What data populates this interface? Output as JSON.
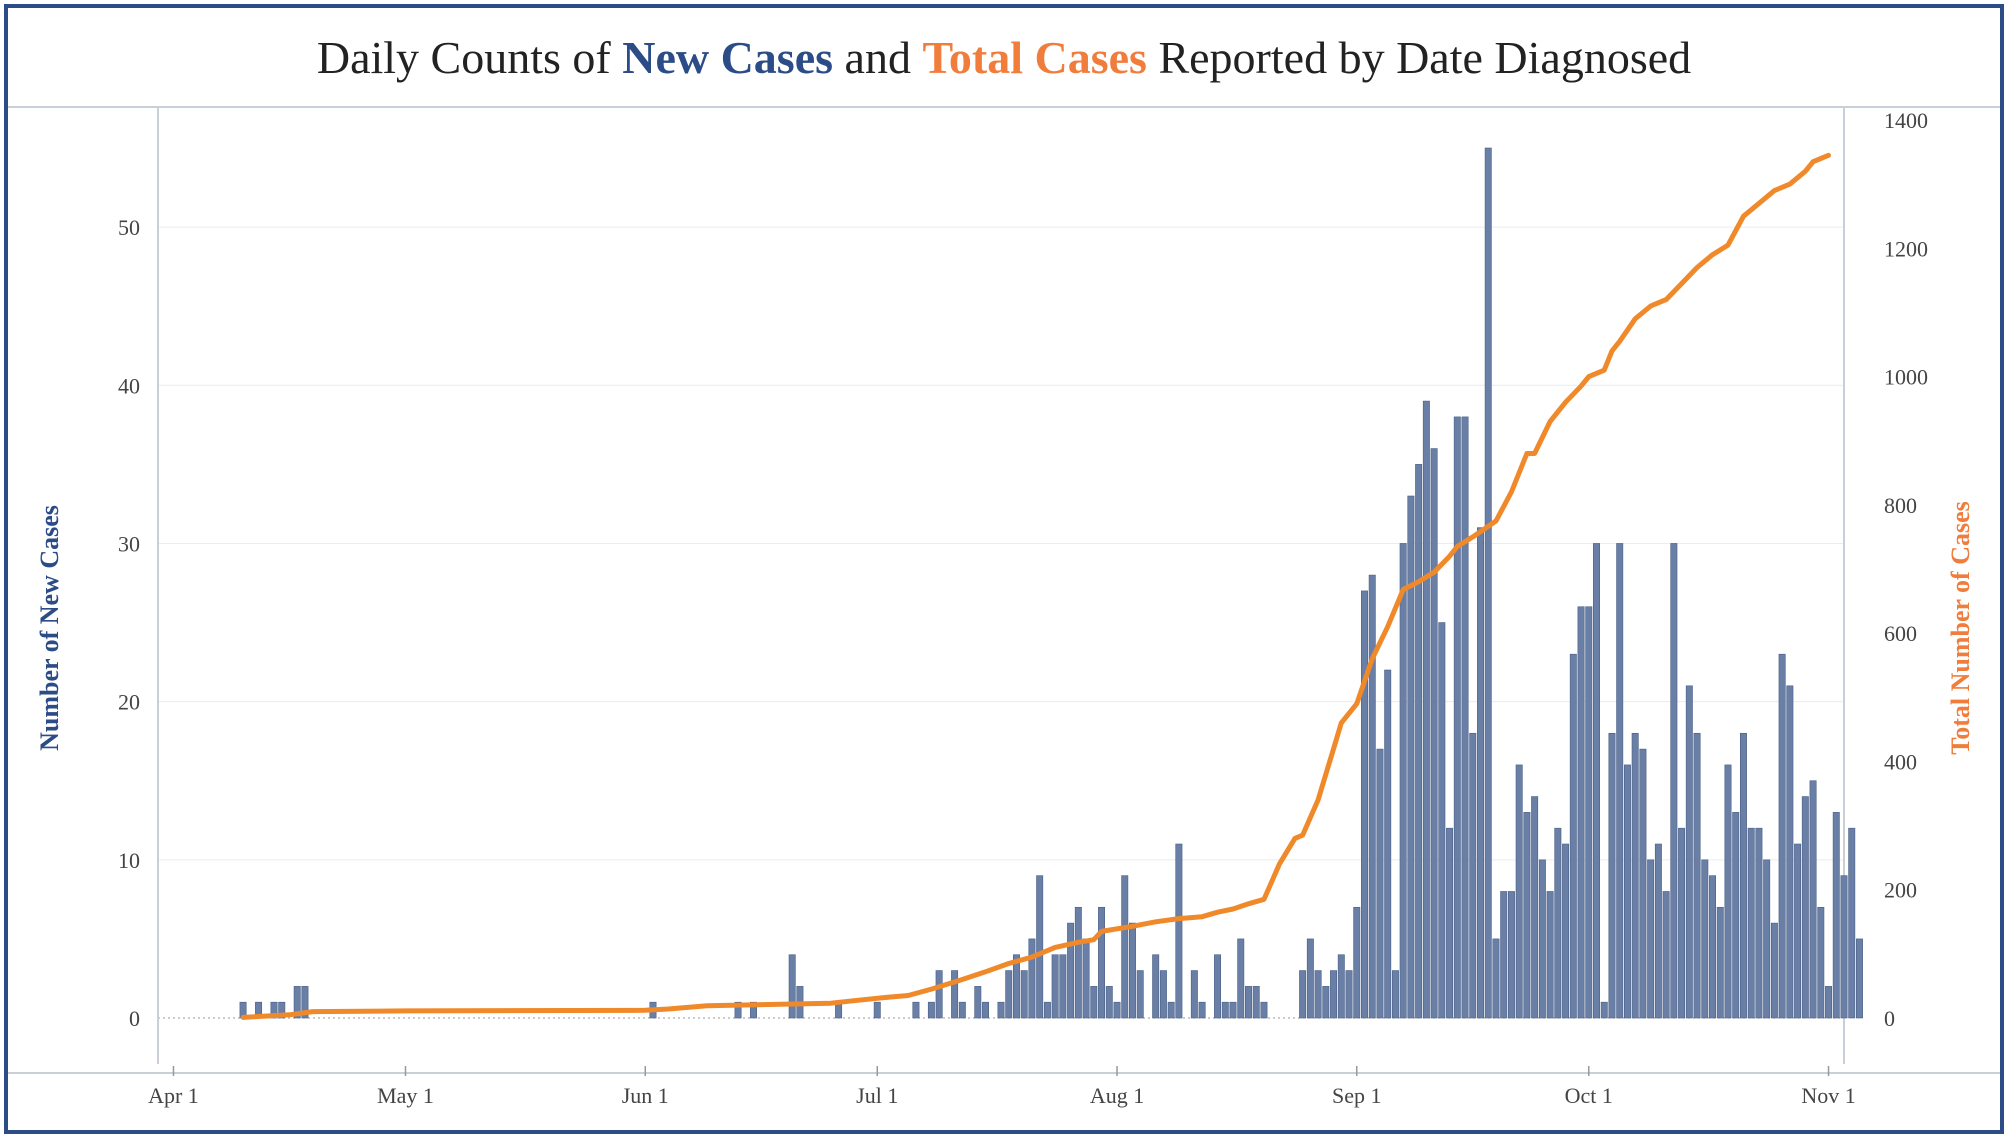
{
  "title": {
    "part1": "Daily Counts of ",
    "part2": "New Cases",
    "part3": " and ",
    "part4": "Total Cases",
    "part5": " Reported by Date Diagnosed"
  },
  "chart_data": {
    "type": "bar",
    "title": "Daily Counts of New Cases and Total Cases Reported by Date Diagnosed",
    "xlabel": "",
    "ylabel": "Number of New Cases",
    "y2label": "Total Number of Cases",
    "ylim": [
      0,
      55
    ],
    "y2lim": [
      0,
      1400
    ],
    "x_axis_range": [
      "2020-03-30",
      "2020-11-03"
    ],
    "x_ticks": [
      {
        "date": "2020-04-01",
        "label": "Apr 1"
      },
      {
        "date": "2020-05-01",
        "label": "May 1"
      },
      {
        "date": "2020-06-01",
        "label": "Jun 1"
      },
      {
        "date": "2020-07-01",
        "label": "Jul 1"
      },
      {
        "date": "2020-08-01",
        "label": "Aug 1"
      },
      {
        "date": "2020-09-01",
        "label": "Sep 1"
      },
      {
        "date": "2020-10-01",
        "label": "Oct 1"
      },
      {
        "date": "2020-11-01",
        "label": "Nov 1"
      }
    ],
    "y_ticks": [
      0,
      10,
      20,
      30,
      40,
      50
    ],
    "y2_ticks": [
      0,
      200,
      400,
      600,
      800,
      1000,
      1200,
      1400
    ],
    "grid": true,
    "colors": {
      "bars": "#6a7fa6",
      "bar_edge": "#4a5f86",
      "line": "#f0892a",
      "left_axis": "#2b4c86",
      "right_axis": "#f07d3c"
    },
    "series": [
      {
        "name": "New Cases",
        "type": "bar",
        "start_date": "2020-04-10",
        "values": [
          1,
          0,
          1,
          0,
          1,
          1,
          0,
          2,
          2,
          0,
          0,
          0,
          0,
          0,
          0,
          0,
          0,
          0,
          0,
          0,
          0,
          0,
          0,
          0,
          0,
          0,
          0,
          0,
          0,
          0,
          0,
          0,
          0,
          0,
          0,
          0,
          0,
          0,
          0,
          0,
          0,
          0,
          0,
          0,
          0,
          0,
          0,
          0,
          0,
          0,
          0,
          0,
          0,
          1,
          0,
          0,
          0,
          0,
          0,
          0,
          0,
          0,
          0,
          0,
          1,
          0,
          1,
          0,
          0,
          0,
          0,
          4,
          2,
          0,
          0,
          0,
          0,
          1,
          0,
          0,
          0,
          0,
          1,
          0,
          0,
          0,
          0,
          1,
          0,
          1,
          3,
          0,
          3,
          1,
          0,
          2,
          1,
          0,
          1,
          3,
          4,
          3,
          5,
          9,
          1,
          4,
          4,
          6,
          7,
          5,
          2,
          7,
          2,
          1,
          9,
          6,
          3,
          0,
          4,
          3,
          1,
          11,
          0,
          3,
          1,
          0,
          4,
          1,
          1,
          5,
          2,
          2,
          1,
          0,
          0,
          0,
          0,
          3,
          5,
          3,
          2,
          3,
          4,
          3,
          7,
          27,
          28,
          17,
          22,
          3,
          30,
          33,
          35,
          39,
          36,
          25,
          12,
          38,
          38,
          18,
          31,
          55,
          5,
          8,
          8,
          16,
          13,
          14,
          10,
          8,
          12,
          11,
          23,
          26,
          26,
          30,
          1,
          18,
          30,
          16,
          18,
          17,
          10,
          11,
          8,
          30,
          12,
          21,
          18,
          10,
          9,
          7,
          16,
          13,
          18,
          12,
          12,
          10,
          6,
          23,
          21,
          11,
          14,
          15,
          7,
          2,
          13,
          9,
          12,
          5
        ]
      },
      {
        "name": "Total Cases",
        "type": "line",
        "axis": "right",
        "points": [
          [
            "2020-04-10",
            1
          ],
          [
            "2020-04-16",
            5
          ],
          [
            "2020-04-19",
            10
          ],
          [
            "2020-05-01",
            11
          ],
          [
            "2020-06-01",
            12
          ],
          [
            "2020-06-04",
            14
          ],
          [
            "2020-06-09",
            19
          ],
          [
            "2020-06-25",
            23
          ],
          [
            "2020-06-28",
            27
          ],
          [
            "2020-07-02",
            32
          ],
          [
            "2020-07-05",
            35
          ],
          [
            "2020-07-08",
            45
          ],
          [
            "2020-07-12",
            60
          ],
          [
            "2020-07-15",
            72
          ],
          [
            "2020-07-18",
            85
          ],
          [
            "2020-07-21",
            95
          ],
          [
            "2020-07-24",
            110
          ],
          [
            "2020-07-27",
            118
          ],
          [
            "2020-07-29",
            122
          ],
          [
            "2020-07-30",
            135
          ],
          [
            "2020-08-03",
            143
          ],
          [
            "2020-08-06",
            150
          ],
          [
            "2020-08-09",
            155
          ],
          [
            "2020-08-12",
            158
          ],
          [
            "2020-08-14",
            165
          ],
          [
            "2020-08-16",
            170
          ],
          [
            "2020-08-18",
            178
          ],
          [
            "2020-08-20",
            185
          ],
          [
            "2020-08-22",
            240
          ],
          [
            "2020-08-24",
            280
          ],
          [
            "2020-08-25",
            285
          ],
          [
            "2020-08-27",
            340
          ],
          [
            "2020-08-29",
            420
          ],
          [
            "2020-08-30",
            460
          ],
          [
            "2020-09-01",
            490
          ],
          [
            "2020-09-03",
            560
          ],
          [
            "2020-09-05",
            610
          ],
          [
            "2020-09-07",
            668
          ],
          [
            "2020-09-09",
            680
          ],
          [
            "2020-09-11",
            695
          ],
          [
            "2020-09-13",
            720
          ],
          [
            "2020-09-14",
            735
          ],
          [
            "2020-09-16",
            750
          ],
          [
            "2020-09-19",
            775
          ],
          [
            "2020-09-21",
            820
          ],
          [
            "2020-09-23",
            880
          ],
          [
            "2020-09-24",
            880
          ],
          [
            "2020-09-26",
            930
          ],
          [
            "2020-09-28",
            960
          ],
          [
            "2020-09-30",
            985
          ],
          [
            "2020-10-01",
            1000
          ],
          [
            "2020-10-03",
            1010
          ],
          [
            "2020-10-04",
            1040
          ],
          [
            "2020-10-05",
            1055
          ],
          [
            "2020-10-07",
            1090
          ],
          [
            "2020-10-09",
            1110
          ],
          [
            "2020-10-11",
            1120
          ],
          [
            "2020-10-13",
            1145
          ],
          [
            "2020-10-15",
            1170
          ],
          [
            "2020-10-17",
            1190
          ],
          [
            "2020-10-19",
            1205
          ],
          [
            "2020-10-21",
            1250
          ],
          [
            "2020-10-23",
            1270
          ],
          [
            "2020-10-25",
            1290
          ],
          [
            "2020-10-27",
            1300
          ],
          [
            "2020-10-29",
            1320
          ],
          [
            "2020-10-30",
            1335
          ],
          [
            "2020-11-01",
            1345
          ]
        ]
      }
    ]
  }
}
